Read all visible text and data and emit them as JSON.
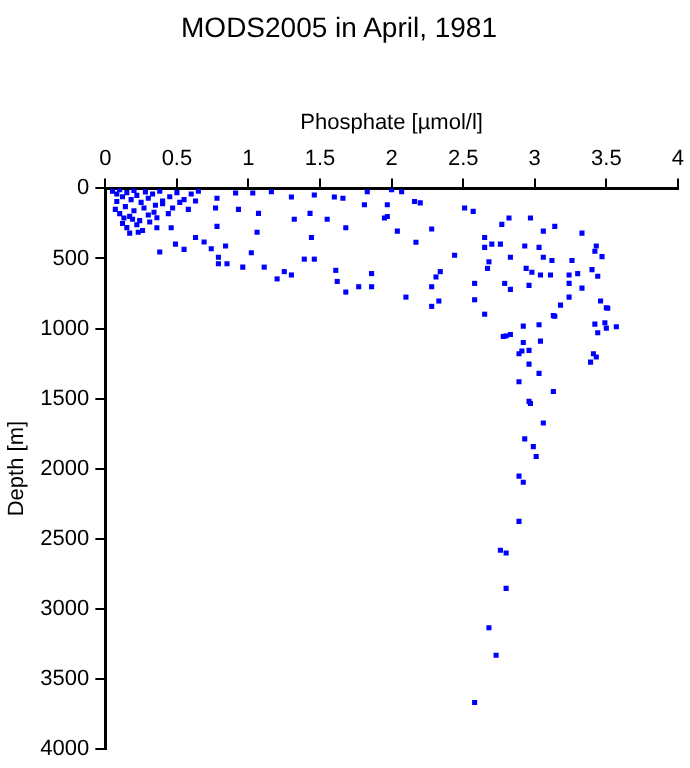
{
  "chart_data": {
    "type": "scatter",
    "title": "MODS2005 in April, 1981",
    "xlabel": "Phosphate [µmol/l]",
    "ylabel": "Depth [m]",
    "xlim": [
      0,
      4
    ],
    "xticks": [
      0,
      0.5,
      1,
      1.5,
      2,
      2.5,
      3,
      3.5,
      4
    ],
    "ylim": [
      4000,
      0
    ],
    "yticks": [
      0,
      500,
      1000,
      1500,
      2000,
      2500,
      3000,
      3500,
      4000
    ],
    "grid": false,
    "legend": false,
    "marker": "square",
    "series": [
      {
        "color": "#0000ff",
        "x": [
          0.05,
          0.08,
          0.1,
          0.12,
          0.15,
          0.18,
          0.2,
          0.22,
          0.25,
          0.28,
          0.3,
          0.33,
          0.35,
          0.38,
          0.4,
          0.45,
          0.5,
          0.55,
          0.6,
          0.65,
          0.07,
          0.1,
          0.14,
          0.17,
          0.2,
          0.24,
          0.27,
          0.3,
          0.34,
          0.4,
          0.47,
          0.52,
          0.58,
          0.63,
          0.12,
          0.15,
          0.19,
          0.22,
          0.26,
          0.31,
          0.36,
          0.44,
          0.23,
          0.17,
          0.13,
          0.08,
          0.36,
          0.46,
          0.78,
          0.77,
          0.78,
          0.93,
          1.07,
          1.06,
          0.38,
          0.49,
          0.55,
          0.63,
          0.69,
          0.74,
          0.79,
          0.84,
          0.79,
          0.85,
          0.96,
          1.02,
          1.11,
          1.2,
          1.25,
          1.3,
          1.39,
          1.46,
          1.44,
          1.61,
          1.62,
          1.68,
          1.77,
          1.86,
          1.86,
          1.32,
          1.43,
          1.55,
          1.68,
          1.66,
          1.83,
          1.97,
          1.95,
          1.16,
          1.03,
          1.3,
          1.46,
          1.81,
          1.6,
          0.91,
          2.0,
          2.07,
          2.16,
          2.2,
          1.97,
          2.04,
          2.28,
          2.17,
          2.51,
          2.57,
          2.82,
          2.97,
          2.77,
          3.14,
          3.06,
          3.33,
          2.65,
          2.65,
          2.7,
          2.76,
          2.93,
          3.03,
          3.43,
          3.42,
          2.44,
          2.83,
          3.06,
          3.47,
          2.68,
          2.94,
          2.67,
          3.12,
          3.26,
          3.4,
          2.98,
          3.04,
          3.11,
          3.24,
          3.3,
          3.44,
          2.34,
          2.31,
          2.58,
          2.79,
          2.83,
          2.96,
          3.24,
          2.28,
          3.33,
          2.1,
          2.33,
          2.28,
          2.58,
          3.24,
          3.18,
          3.14,
          2.65,
          2.78,
          3.5,
          3.46,
          2.92,
          3.03,
          3.13,
          2.8,
          2.83,
          2.92,
          3.04,
          2.91,
          2.89,
          2.96,
          2.96,
          3.03,
          2.89,
          3.13,
          2.96,
          2.97,
          3.06,
          2.93,
          2.99,
          3.01,
          2.89,
          2.92,
          2.89,
          2.76,
          2.8,
          2.8,
          2.68,
          2.73,
          2.58,
          3.49,
          3.42,
          3.44,
          3.5,
          3.57,
          3.41,
          3.43,
          3.39,
          3.51
        ],
        "values": [
          20,
          40,
          10,
          60,
          30,
          80,
          15,
          50,
          100,
          25,
          70,
          40,
          120,
          20,
          90,
          60,
          30,
          80,
          40,
          20,
          150,
          180,
          130,
          200,
          160,
          230,
          140,
          190,
          170,
          110,
          140,
          100,
          150,
          90,
          250,
          280,
          220,
          260,
          300,
          240,
          210,
          180,
          313,
          319,
          211,
          94,
          281,
          281,
          70,
          140,
          271,
          150,
          178,
          313,
          454,
          398,
          435,
          351,
          383,
          431,
          491,
          411,
          538,
          538,
          562,
          459,
          562,
          646,
          594,
          618,
          505,
          505,
          351,
          585,
          664,
          740,
          702,
          608,
          702,
          220,
          178,
          220,
          281,
          70,
          24,
          117,
          211,
          24,
          33,
          61,
          47,
          117,
          61,
          33,
          10,
          24,
          94,
          103,
          201,
          305,
          290,
          384,
          140,
          164,
          211,
          211,
          257,
          271,
          305,
          319,
          351,
          421,
          398,
          398,
          411,
          421,
          411,
          449,
          477,
          491,
          491,
          487,
          524,
          571,
          571,
          515,
          515,
          580,
          599,
          618,
          618,
          618,
          608,
          627,
          594,
          632,
          678,
          678,
          721,
          692,
          678,
          702,
          712,
          776,
          804,
          842,
          795,
          776,
          833,
          912,
          898,
          1057,
          852,
          804,
          983,
          973,
          908,
          1053,
          1043,
          1100,
          1090,
          1161,
          1180,
          1156,
          1254,
          1320,
          1380,
          1450,
          1520,
          1535,
          1675,
          1788,
          1843,
          1914,
          2054,
          2097,
          2377,
          2583,
          2602,
          2855,
          3136,
          3332,
          3669,
          959,
          969,
          1030,
          997,
          988,
          1180,
          1203,
          1240,
          856
        ]
      }
    ]
  }
}
